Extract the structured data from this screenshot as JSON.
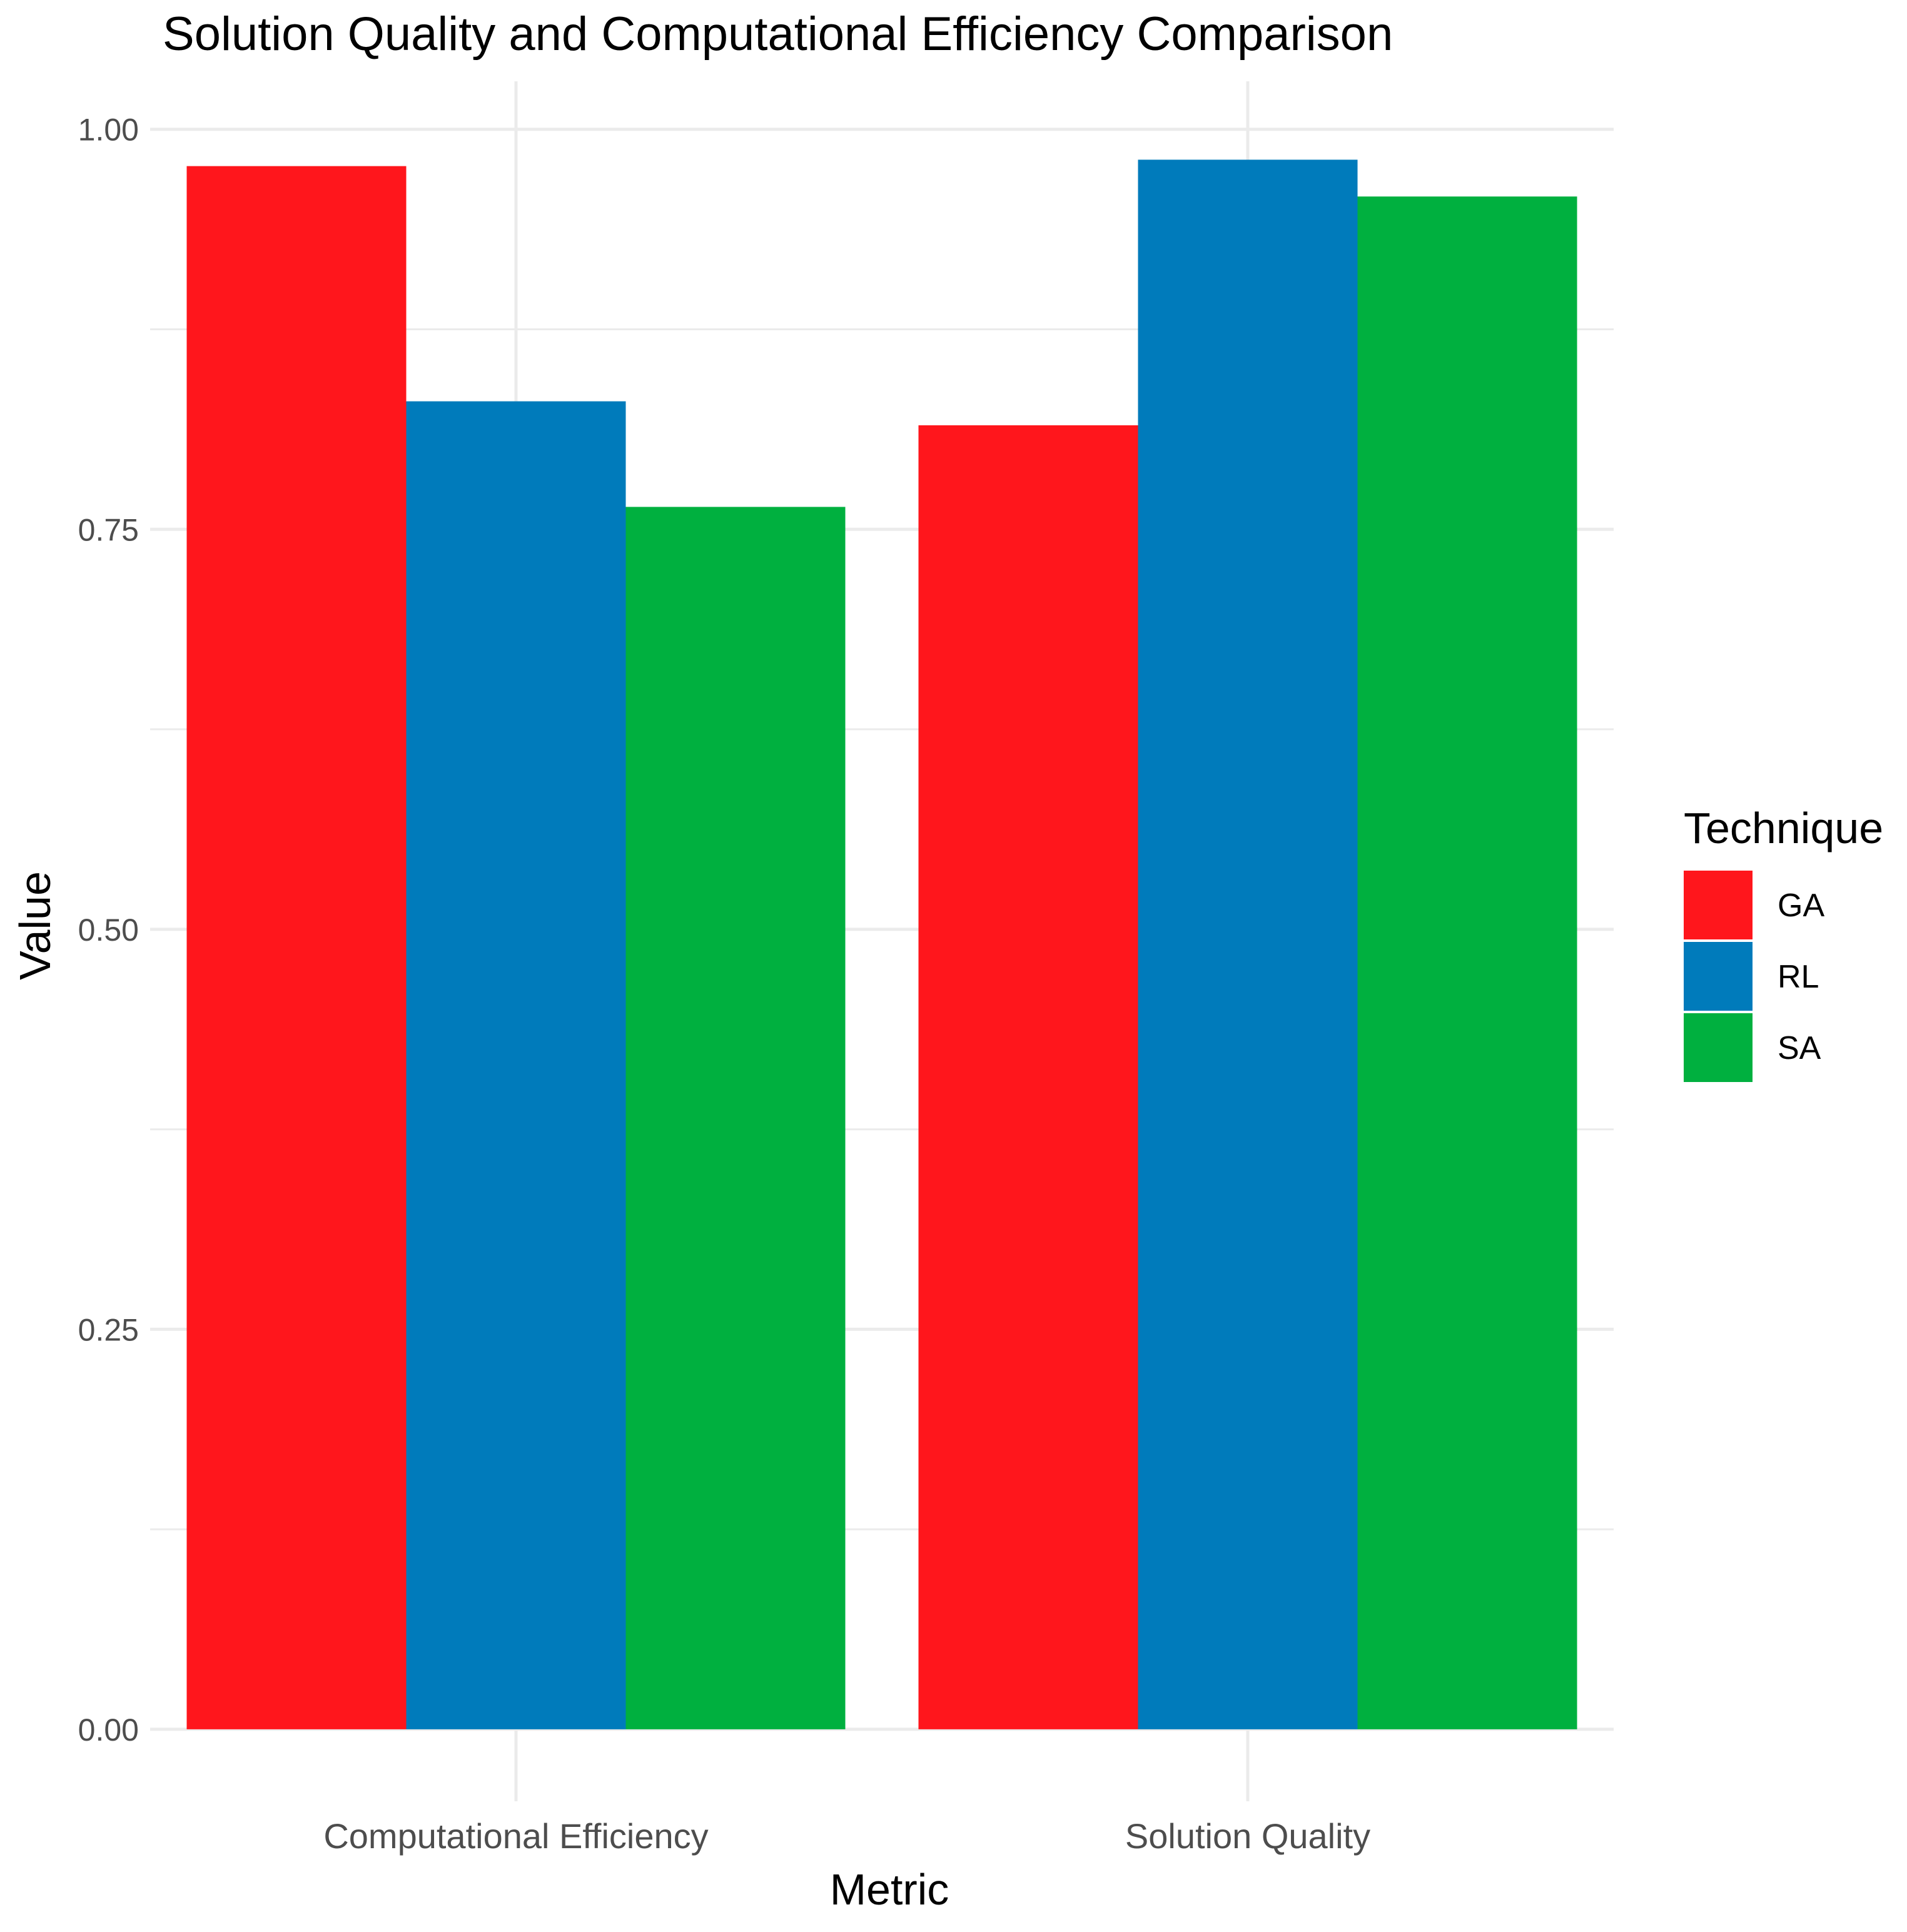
{
  "chart_data": {
    "type": "bar",
    "title": "Solution Quality and Computational Efficiency Comparison",
    "xlabel": "Metric",
    "ylabel": "Value",
    "categories": [
      "Computational Efficiency",
      "Solution Quality"
    ],
    "series": [
      {
        "name": "GA",
        "color": "#FF161C",
        "values": [
          0.977,
          0.815
        ]
      },
      {
        "name": "RL",
        "color": "#007BBB",
        "values": [
          0.83,
          0.981
        ]
      },
      {
        "name": "SA",
        "color": "#00B03F",
        "values": [
          0.764,
          0.958
        ]
      }
    ],
    "ylim": [
      -0.045,
      1.03
    ],
    "yticks": [
      0.0,
      0.25,
      0.5,
      0.75,
      1.0
    ],
    "ytick_labels": [
      "0.00",
      "0.25",
      "0.50",
      "0.75",
      "1.00"
    ],
    "grid": true,
    "legend": {
      "title": "Technique",
      "position": "right"
    }
  }
}
